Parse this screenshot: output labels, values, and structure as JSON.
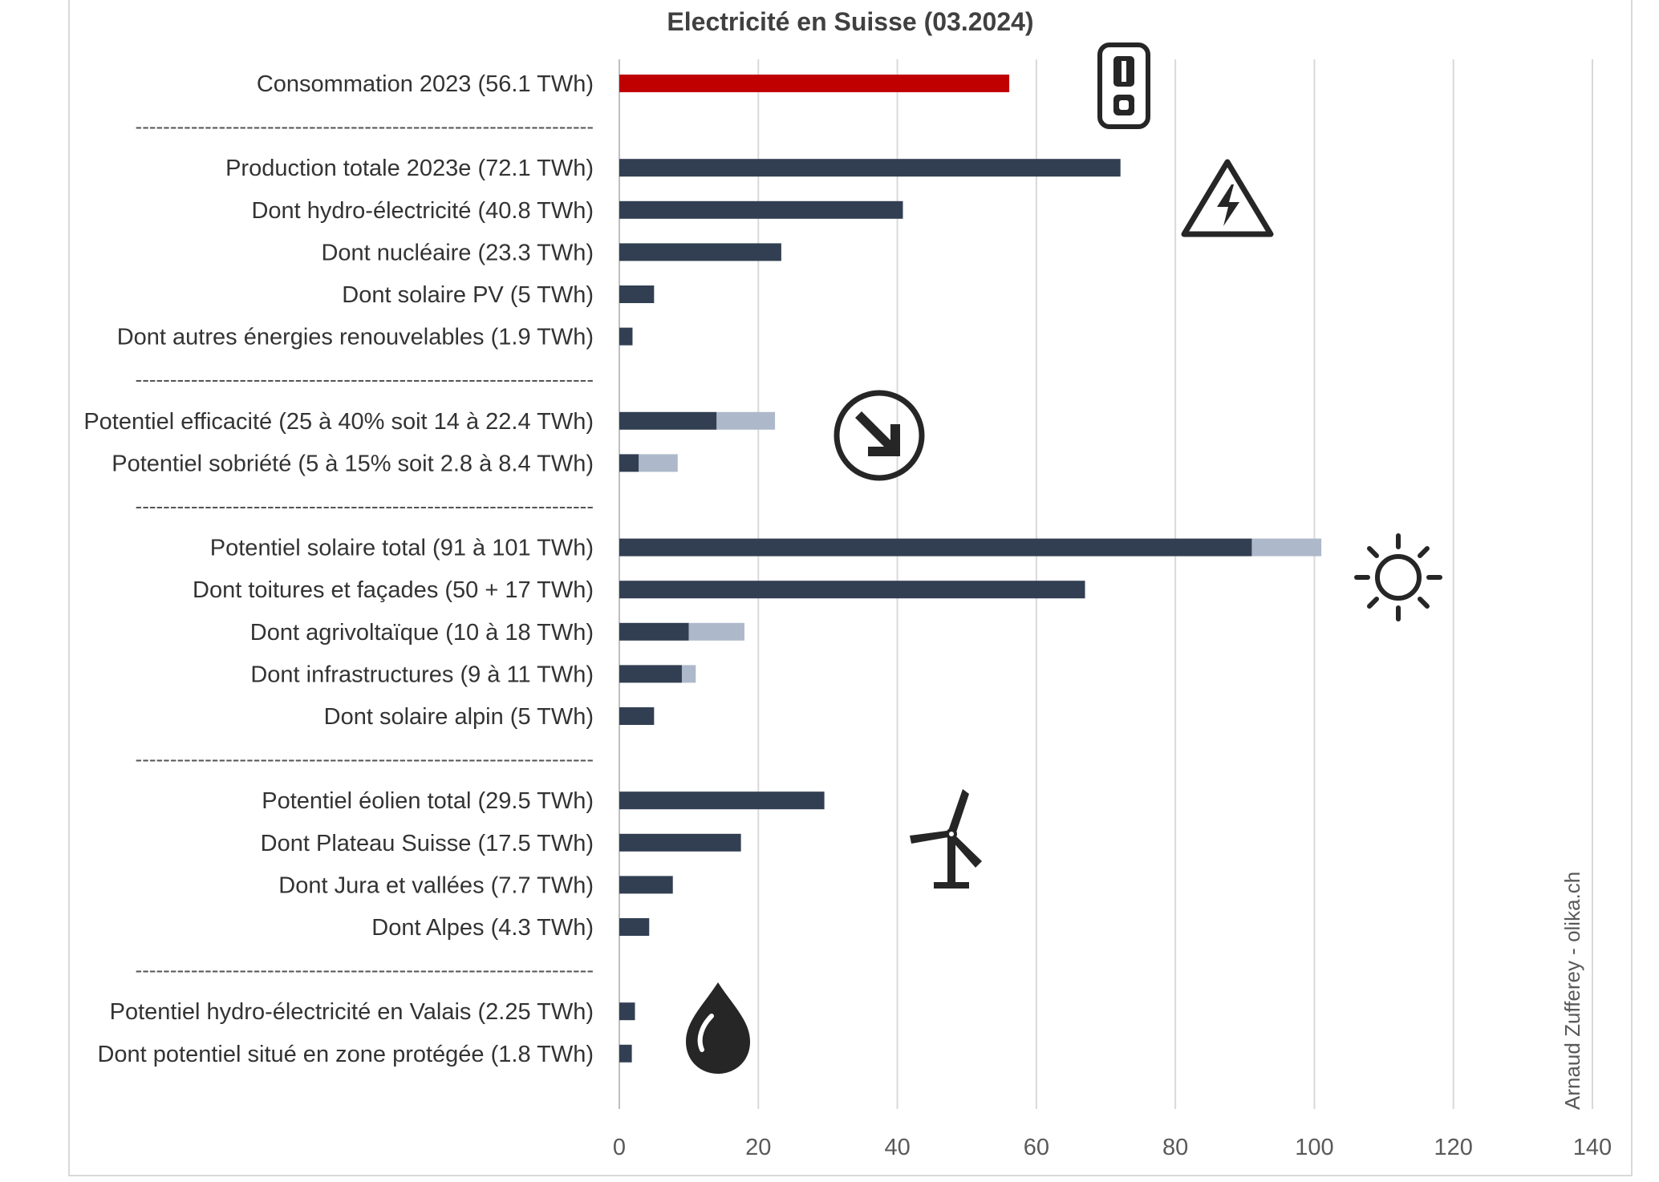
{
  "chart_data": {
    "type": "bar",
    "orientation": "horizontal",
    "stacked": true,
    "title": "Electricité en Suisse (03.2024)",
    "xlabel": "",
    "ylabel": "",
    "xlim": [
      0,
      140
    ],
    "x_ticks": [
      "0",
      "20",
      "40",
      "60",
      "80",
      "100",
      "120",
      "140"
    ],
    "grid": "vertical",
    "legend": "none",
    "credit": "Arnaud Zufferey - olika.ch",
    "separator_text": "------------------------------------------------------------------",
    "colors": {
      "highlight": "#C00000",
      "main": "#323F52",
      "range": "#ADB9CA",
      "grid": "#D9D9D9",
      "icon": "#262626"
    },
    "categories": [
      "Consommation 2023 (56.1 TWh)",
      "------------------------------------------------------------------",
      "Production totale 2023e (72.1 TWh)",
      "Dont hydro-électricité (40.8 TWh)",
      "Dont nucléaire (23.3 TWh)",
      "Dont solaire PV (5 TWh)",
      "Dont autres énergies renouvelables (1.9 TWh)",
      "------------------------------------------------------------------",
      "Potentiel efficacité (25 à 40% soit 14 à 22.4 TWh)",
      "Potentiel sobriété (5 à 15% soit 2.8 à 8.4 TWh)",
      "------------------------------------------------------------------",
      "Potentiel solaire total (91 à 101 TWh)",
      "Dont toitures et façades (50 + 17 TWh)",
      "Dont agrivoltaïque (10 à 18 TWh)",
      "Dont infrastructures (9 à 11 TWh)",
      "Dont solaire alpin (5 TWh)",
      "------------------------------------------------------------------",
      "Potentiel éolien total (29.5 TWh)",
      "Dont Plateau Suisse (17.5 TWh)",
      "Dont Jura et vallées (7.7 TWh)",
      "Dont Alpes (4.3 TWh)",
      "------------------------------------------------------------------",
      "Potentiel hydro-électricité en Valais (2.25 TWh)",
      "Dont potentiel situé en zone protégée (1.8 TWh)"
    ],
    "series": [
      {
        "values": [
          56.1,
          null,
          72.1,
          40.8,
          23.3,
          5,
          1.9,
          null,
          14,
          2.8,
          null,
          91,
          67,
          10,
          9,
          5,
          null,
          29.5,
          17.5,
          7.7,
          4.3,
          null,
          2.25,
          1.8
        ]
      },
      {
        "values": [
          null,
          null,
          null,
          null,
          null,
          null,
          null,
          null,
          8.4,
          5.6,
          null,
          10,
          null,
          8,
          2,
          null,
          null,
          null,
          null,
          null,
          null,
          null,
          null,
          null
        ]
      }
    ],
    "icons": [
      "power-switch-icon",
      "high-voltage-warning-icon",
      "arrow-down-right-icon",
      "sun-icon",
      "wind-turbine-icon",
      "water-drop-icon"
    ]
  }
}
